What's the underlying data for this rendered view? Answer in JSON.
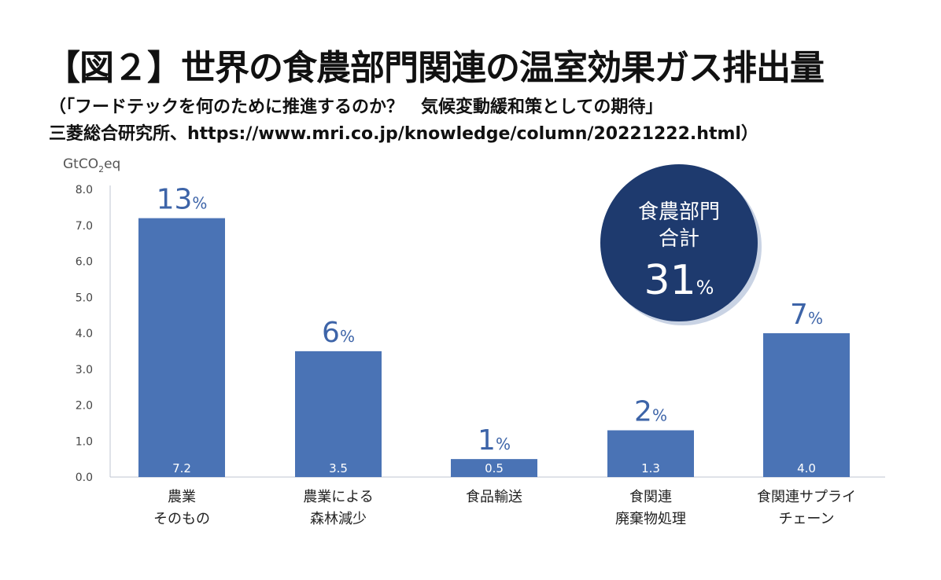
{
  "title": "【図２】世界の食農部門関連の温室効果ガス排出量",
  "source_line1": "（「フードテックを何のために推進するのか？　気候変動緩和策としての期待」",
  "source_line2": "三菱総合研究所、https://www.mri.co.jp/knowledge/column/20221222.html）",
  "chart_data": {
    "type": "bar",
    "ylabel_main": "GtCO",
    "ylabel_sub": "2",
    "ylabel_tail": "eq",
    "ylim": [
      0,
      8
    ],
    "yticks": [
      "0.0",
      "1.0",
      "2.0",
      "3.0",
      "4.0",
      "5.0",
      "6.0",
      "7.0",
      "8.0"
    ],
    "categories": [
      [
        "農業",
        "そのもの"
      ],
      [
        "農業による",
        "森林減少"
      ],
      [
        "食品輸送"
      ],
      [
        "食関連",
        "廃棄物処理"
      ],
      [
        "食関連サプライ",
        "チェーン"
      ]
    ],
    "values": [
      7.2,
      3.5,
      0.5,
      1.3,
      4.0
    ],
    "value_labels": [
      "7.2",
      "3.5",
      "0.5",
      "1.3",
      "4.0"
    ],
    "percent_labels": [
      "13",
      "6",
      "1",
      "2",
      "7"
    ],
    "percent_sign": "%",
    "bar_color": "#4a73b5",
    "grid": false
  },
  "badge": {
    "line1": "食農部門",
    "line2": "合計",
    "value": "31",
    "sign": "%",
    "color": "#1e3a6e"
  }
}
